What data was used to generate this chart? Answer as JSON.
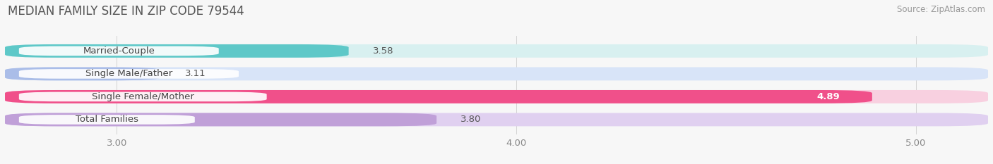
{
  "title": "MEDIAN FAMILY SIZE IN ZIP CODE 79544",
  "source": "Source: ZipAtlas.com",
  "categories": [
    "Married-Couple",
    "Single Male/Father",
    "Single Female/Mother",
    "Total Families"
  ],
  "values": [
    3.58,
    3.11,
    4.89,
    3.8
  ],
  "bar_colors": [
    "#5EC8C8",
    "#AABDE8",
    "#F0508A",
    "#C0A0D8"
  ],
  "bg_bar_colors": [
    "#D8F0F0",
    "#D8E4F8",
    "#F8D0E0",
    "#E0D0F0"
  ],
  "xlim": [
    2.72,
    5.18
  ],
  "xstart": 2.72,
  "xticks": [
    3.0,
    4.0,
    5.0
  ],
  "xtick_labels": [
    "3.00",
    "4.00",
    "5.00"
  ],
  "background_color": "#f7f7f7",
  "title_fontsize": 12,
  "label_fontsize": 9.5,
  "value_fontsize": 9.5,
  "source_fontsize": 8.5,
  "bar_height": 0.58,
  "bar_gap": 0.18
}
